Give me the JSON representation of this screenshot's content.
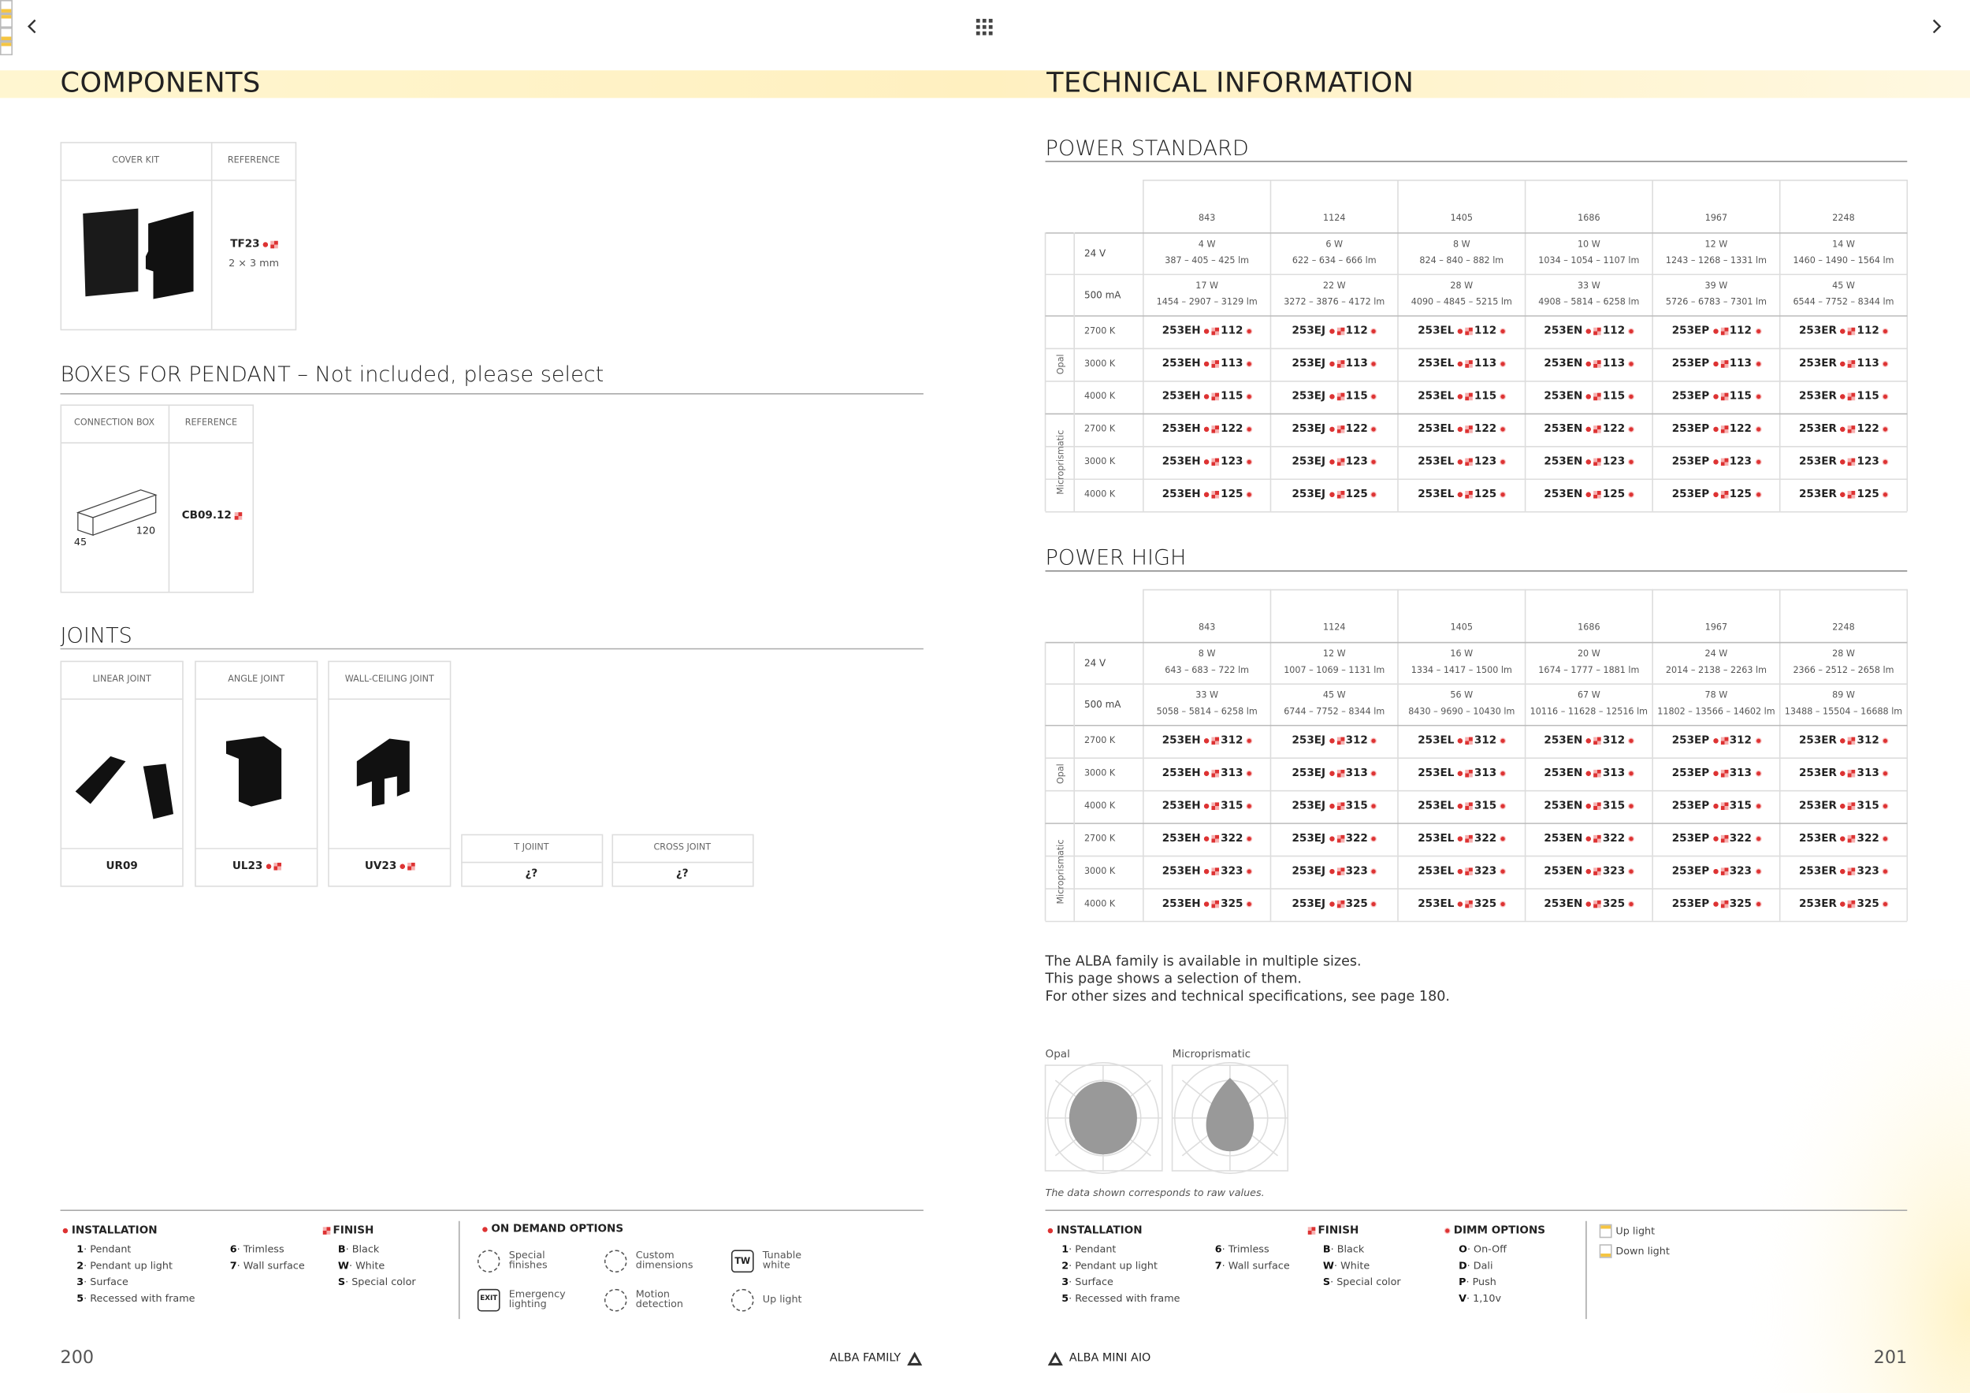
{
  "nav": {
    "page_left": "200",
    "page_right": "201",
    "footer_left": "ALBA FAMILY",
    "footer_right": "ALBA MINI AIO"
  },
  "left": {
    "title": "COMPONENTS",
    "cover_kit": {
      "headers": [
        "COVER KIT",
        "REFERENCE"
      ],
      "reference": "TF23",
      "size": "2 × 3 mm"
    },
    "boxes": {
      "title": "BOXES FOR PENDANT – Not included, please select",
      "headers": [
        "CONNECTION BOX",
        "REFERENCE"
      ],
      "dims": [
        "45",
        "120"
      ],
      "reference": "CB09.12"
    },
    "joints": {
      "title": "JOINTS",
      "items": [
        {
          "name": "LINEAR JOINT",
          "reference": "UR09"
        },
        {
          "name": "ANGLE JOINT",
          "reference": "UL23"
        },
        {
          "name": "WALL-CEILING JOINT",
          "reference": "UV23"
        },
        {
          "name": "T JOIINT",
          "reference": "¿?"
        },
        {
          "name": "CROSS JOINT",
          "reference": "¿?"
        }
      ]
    },
    "legend": {
      "installation": {
        "title": "INSTALLATION",
        "items": [
          {
            "key": "1",
            "label": "· Pendant"
          },
          {
            "key": "2",
            "label": "· Pendant up light"
          },
          {
            "key": "3",
            "label": "· Surface"
          },
          {
            "key": "5",
            "label": "· Recessed with frame"
          },
          {
            "key": "6",
            "label": "· Trimless"
          },
          {
            "key": "7",
            "label": "· Wall surface"
          }
        ]
      },
      "finish": {
        "title": "FINISH",
        "items": [
          {
            "key": "B",
            "label": "· Black"
          },
          {
            "key": "W",
            "label": "· White"
          },
          {
            "key": "S",
            "label": "· Special color"
          }
        ]
      },
      "on_demand": {
        "title": "ON DEMAND OPTIONS",
        "items": [
          {
            "label": "Special finishes"
          },
          {
            "label": "Custom dimensions"
          },
          {
            "label": "Tunable white",
            "icon": "TW"
          },
          {
            "label": "Emergency lighting",
            "icon": "EXIT"
          },
          {
            "label": "Motion detection"
          },
          {
            "label": "Up light"
          }
        ]
      }
    }
  },
  "right": {
    "title": "TECHNICAL INFORMATION",
    "tables": [
      {
        "title": "POWER STANDARD",
        "lengths": [
          "843",
          "1124",
          "1405",
          "1686",
          "1967",
          "2248"
        ],
        "codes": [
          "253EH",
          "253EJ",
          "253EL",
          "253EN",
          "253EP",
          "253ER"
        ],
        "power_rows": [
          {
            "label": "24 V",
            "cells": [
              [
                "4 W",
                "387 – 405 – 425 lm"
              ],
              [
                "6 W",
                "622 – 634 – 666 lm"
              ],
              [
                "8 W",
                "824 – 840 – 882 lm"
              ],
              [
                "10 W",
                "1034 – 1054 – 1107 lm"
              ],
              [
                "12 W",
                "1243 – 1268 – 1331 lm"
              ],
              [
                "14 W",
                "1460 – 1490 – 1564 lm"
              ]
            ]
          },
          {
            "label": "500 mA",
            "cells": [
              [
                "17 W",
                "1454 – 2907 – 3129 lm"
              ],
              [
                "22 W",
                "3272 – 3876 – 4172 lm"
              ],
              [
                "28 W",
                "4090 – 4845 – 5215 lm"
              ],
              [
                "33 W",
                "4908 – 5814 – 6258 lm"
              ],
              [
                "39 W",
                "5726 – 6783 – 7301 lm"
              ],
              [
                "45 W",
                "6544 – 7752 – 8344 lm"
              ]
            ]
          }
        ],
        "groups": [
          {
            "name": "Opal",
            "rows": [
              {
                "cct": "2700 K",
                "suffix": "112"
              },
              {
                "cct": "3000 K",
                "suffix": "113"
              },
              {
                "cct": "4000 K",
                "suffix": "115"
              }
            ]
          },
          {
            "name": "Microprismatic",
            "rows": [
              {
                "cct": "2700 K",
                "suffix": "122"
              },
              {
                "cct": "3000 K",
                "suffix": "123"
              },
              {
                "cct": "4000 K",
                "suffix": "125"
              }
            ]
          }
        ]
      },
      {
        "title": "POWER HIGH",
        "lengths": [
          "843",
          "1124",
          "1405",
          "1686",
          "1967",
          "2248"
        ],
        "codes": [
          "253EH",
          "253EJ",
          "253EL",
          "253EN",
          "253EP",
          "253ER"
        ],
        "power_rows": [
          {
            "label": "24 V",
            "cells": [
              [
                "8 W",
                "643 – 683 – 722 lm"
              ],
              [
                "12 W",
                "1007 – 1069 – 1131 lm"
              ],
              [
                "16 W",
                "1334 – 1417 – 1500 lm"
              ],
              [
                "20 W",
                "1674 – 1777 – 1881 lm"
              ],
              [
                "24 W",
                "2014 – 2138 – 2263 lm"
              ],
              [
                "28 W",
                "2366 – 2512 – 2658 lm"
              ]
            ]
          },
          {
            "label": "500 mA",
            "cells": [
              [
                "33 W",
                "5058 – 5814 – 6258 lm"
              ],
              [
                "45 W",
                "6744 – 7752 – 8344 lm"
              ],
              [
                "56 W",
                "8430 – 9690 – 10430 lm"
              ],
              [
                "67 W",
                "10116 – 11628 – 12516 lm"
              ],
              [
                "78 W",
                "11802 – 13566 – 14602 lm"
              ],
              [
                "89 W",
                "13488 – 15504 – 16688 lm"
              ]
            ]
          }
        ],
        "groups": [
          {
            "name": "Opal",
            "rows": [
              {
                "cct": "2700 K",
                "suffix": "312"
              },
              {
                "cct": "3000 K",
                "suffix": "313"
              },
              {
                "cct": "4000 K",
                "suffix": "315"
              }
            ]
          },
          {
            "name": "Microprismatic",
            "rows": [
              {
                "cct": "2700 K",
                "suffix": "322"
              },
              {
                "cct": "3000 K",
                "suffix": "323"
              },
              {
                "cct": "4000 K",
                "suffix": "325"
              }
            ]
          }
        ]
      }
    ],
    "notes": [
      "The ALBA family is available in multiple sizes.",
      "This page shows a selection of them.",
      "For other sizes and technical specifications, see page 180."
    ],
    "photometry": [
      "Opal",
      "Microprismatic"
    ],
    "caption": "The data shown corresponds to raw values.",
    "legend": {
      "installation": {
        "title": "INSTALLATION",
        "items": [
          {
            "key": "1",
            "label": "· Pendant"
          },
          {
            "key": "2",
            "label": "· Pendant up light"
          },
          {
            "key": "3",
            "label": "· Surface"
          },
          {
            "key": "5",
            "label": "· Recessed with frame"
          },
          {
            "key": "6",
            "label": "· Trimless"
          },
          {
            "key": "7",
            "label": "· Wall surface"
          }
        ]
      },
      "finish": {
        "title": "FINISH",
        "items": [
          {
            "key": "B",
            "label": "· Black"
          },
          {
            "key": "W",
            "label": "· White"
          },
          {
            "key": "S",
            "label": "· Special color"
          }
        ]
      },
      "dimm": {
        "title": "DIMM OPTIONS",
        "items": [
          {
            "key": "O",
            "label": "· On-Off"
          },
          {
            "key": "D",
            "label": "· Dali"
          },
          {
            "key": "P",
            "label": "· Push"
          },
          {
            "key": "V",
            "label": "· 1,10v"
          }
        ]
      },
      "light": [
        "Up light",
        "Down light"
      ]
    }
  }
}
